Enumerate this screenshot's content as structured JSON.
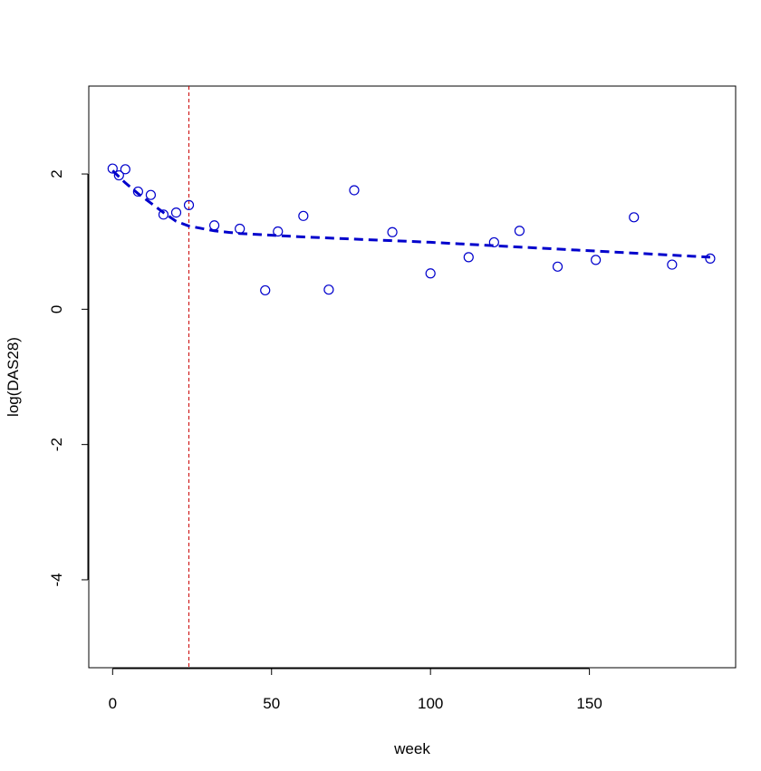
{
  "chart_data": {
    "type": "scatter",
    "title": "",
    "xlabel": "week",
    "ylabel": "log(DAS28)",
    "xlim": [
      -7.5,
      196
    ],
    "ylim": [
      -5.3,
      3.3
    ],
    "x_ticks": [
      0,
      50,
      100,
      150
    ],
    "y_ticks": [
      -4,
      -2,
      0,
      2
    ],
    "grid": false,
    "legend": "none",
    "series": [
      {
        "kind": "points",
        "color": "#0000cc",
        "marker": "open-circle",
        "points": [
          {
            "x": 0,
            "y": 2.08
          },
          {
            "x": 2,
            "y": 1.98
          },
          {
            "x": 4,
            "y": 2.07
          },
          {
            "x": 8,
            "y": 1.74
          },
          {
            "x": 12,
            "y": 1.69
          },
          {
            "x": 16,
            "y": 1.4
          },
          {
            "x": 20,
            "y": 1.43
          },
          {
            "x": 24,
            "y": 1.54
          },
          {
            "x": 32,
            "y": 1.24
          },
          {
            "x": 40,
            "y": 1.19
          },
          {
            "x": 48,
            "y": 0.28
          },
          {
            "x": 52,
            "y": 1.15
          },
          {
            "x": 60,
            "y": 1.38
          },
          {
            "x": 68,
            "y": 0.29
          },
          {
            "x": 76,
            "y": 1.76
          },
          {
            "x": 88,
            "y": 1.14
          },
          {
            "x": 100,
            "y": 0.53
          },
          {
            "x": 112,
            "y": 0.77
          },
          {
            "x": 120,
            "y": 0.99
          },
          {
            "x": 128,
            "y": 1.16
          },
          {
            "x": 140,
            "y": 0.63
          },
          {
            "x": 152,
            "y": 0.73
          },
          {
            "x": 164,
            "y": 1.36
          },
          {
            "x": 176,
            "y": 0.66
          },
          {
            "x": 188,
            "y": 0.75
          }
        ]
      },
      {
        "kind": "fitted-line",
        "color": "#0000cc",
        "dash": "dashed",
        "points": [
          {
            "x": 0,
            "y": 2.05
          },
          {
            "x": 4,
            "y": 1.87
          },
          {
            "x": 8,
            "y": 1.71
          },
          {
            "x": 12,
            "y": 1.57
          },
          {
            "x": 16,
            "y": 1.43
          },
          {
            "x": 20,
            "y": 1.3
          },
          {
            "x": 24,
            "y": 1.23
          },
          {
            "x": 32,
            "y": 1.16
          },
          {
            "x": 40,
            "y": 1.12
          },
          {
            "x": 60,
            "y": 1.07
          },
          {
            "x": 80,
            "y": 1.03
          },
          {
            "x": 100,
            "y": 0.99
          },
          {
            "x": 120,
            "y": 0.94
          },
          {
            "x": 140,
            "y": 0.89
          },
          {
            "x": 160,
            "y": 0.84
          },
          {
            "x": 188,
            "y": 0.77
          }
        ]
      }
    ],
    "reference_line": {
      "orientation": "vertical",
      "x": 24,
      "color": "#cc0000",
      "dash": "dashed"
    }
  }
}
